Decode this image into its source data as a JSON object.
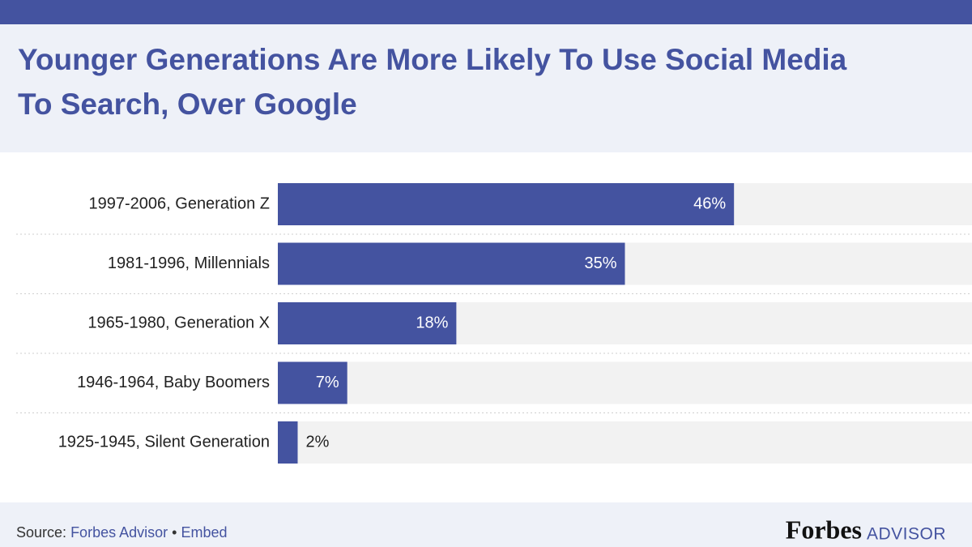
{
  "chart_data": {
    "type": "hbar",
    "title": [
      "Younger Generations Are More Likely To Use Social Media",
      "To Search,  Over Google"
    ],
    "categories": [
      "1997-2006, Generation Z",
      "1981-1996, Millennials",
      "1965-1980, Generation X",
      "1946-1964, Baby Boomers",
      "1925-1945, Silent Generation"
    ],
    "values": [
      46,
      35,
      18,
      7,
      2
    ],
    "value_labels": [
      "46%",
      "35%",
      "18%",
      "7%",
      "2%"
    ],
    "color": "#4453a0",
    "xlim": [
      0,
      70
    ]
  },
  "footer": {
    "source_label": "Source:",
    "source": "Forbes Advisor",
    "separator": "•",
    "embed": "Embed",
    "logo": "Forbes",
    "logo_suffix": "ADVISOR"
  }
}
